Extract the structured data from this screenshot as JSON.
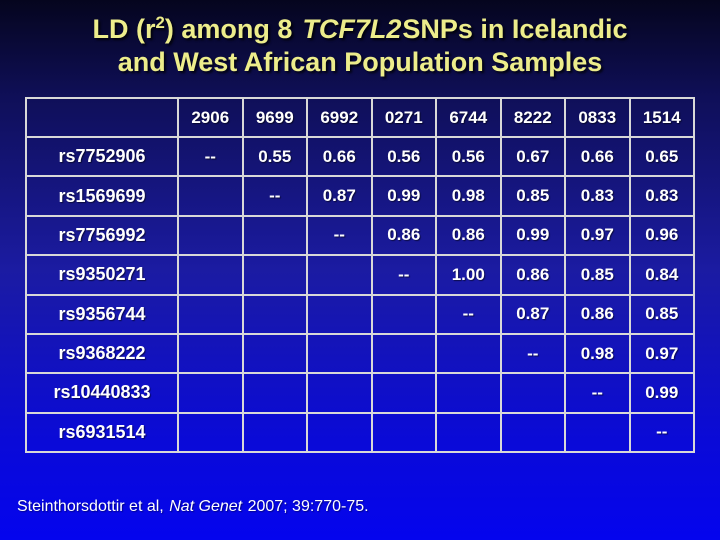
{
  "title": {
    "part1": "LD (r",
    "sup": "2",
    "part2": ") among 8",
    "gene": "TCF7L2",
    "part3a": "SNPs in Icelandic",
    "part3b": "and West African Population Samples"
  },
  "table": {
    "headers": [
      "",
      "2906",
      "9699",
      "6992",
      "0271",
      "6744",
      "8222",
      "0833",
      "1514"
    ],
    "rows": [
      {
        "label": "rs7752906",
        "values": [
          "--",
          "0.55",
          "0.66",
          "0.56",
          "0.56",
          "0.67",
          "0.66",
          "0.65"
        ]
      },
      {
        "label": "rs1569699",
        "values": [
          "",
          "--",
          "0.87",
          "0.99",
          "0.98",
          "0.85",
          "0.83",
          "0.83"
        ]
      },
      {
        "label": "rs7756992",
        "values": [
          "",
          "",
          "--",
          "0.86",
          "0.86",
          "0.99",
          "0.97",
          "0.96"
        ]
      },
      {
        "label": "rs9350271",
        "values": [
          "",
          "",
          "",
          "--",
          "1.00",
          "0.86",
          "0.85",
          "0.84"
        ]
      },
      {
        "label": "rs9356744",
        "values": [
          "",
          "",
          "",
          "",
          "--",
          "0.87",
          "0.86",
          "0.85"
        ]
      },
      {
        "label": "rs9368222",
        "values": [
          "",
          "",
          "",
          "",
          "",
          "--",
          "0.98",
          "0.97"
        ]
      },
      {
        "label": "rs10440833",
        "values": [
          "",
          "",
          "",
          "",
          "",
          "",
          "--",
          "0.99"
        ]
      },
      {
        "label": "rs6931514",
        "values": [
          "",
          "",
          "",
          "",
          "",
          "",
          "",
          "--"
        ]
      }
    ]
  },
  "citation": {
    "part1": "Steinthorsdottir et al, ",
    "journal": "Nat Genet",
    "part2": " 2007; 39:770-75."
  },
  "colors": {
    "background_top": "#05051E",
    "background_mid": "#1B1BA2",
    "background_bottom": "#0404EE",
    "title_text": "#EDED8B",
    "body_text": "#FFFFFF",
    "grid_line": "#D8D8D8"
  }
}
